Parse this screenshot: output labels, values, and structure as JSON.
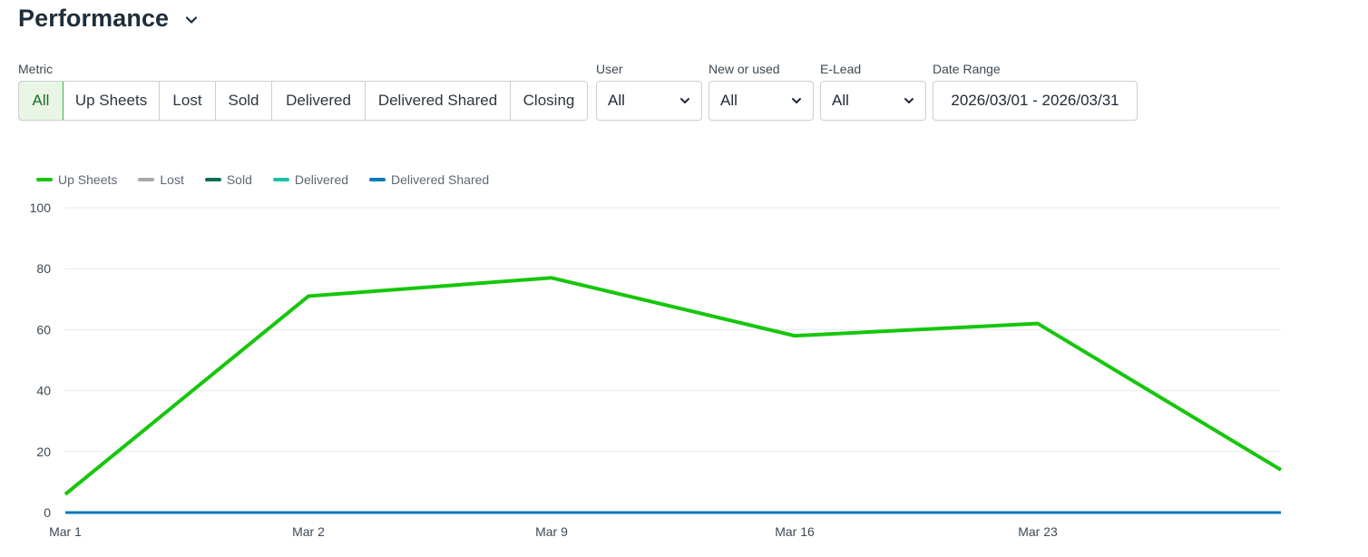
{
  "header": {
    "title": "Performance",
    "menu_icon": "chevron-down-icon"
  },
  "filters": {
    "metric_label": "Metric",
    "metric_options": [
      "All",
      "Up Sheets",
      "Lost",
      "Sold",
      "Delivered",
      "Delivered Shared",
      "Closing"
    ],
    "metric_selected": "All",
    "user_label": "User",
    "user_value": "All",
    "new_used_label": "New or used",
    "new_used_value": "All",
    "elead_label": "E-Lead",
    "elead_value": "All",
    "date_range_label": "Date Range",
    "date_range_value": "2026/03/01 - 2026/03/31"
  },
  "chart_data": {
    "type": "line",
    "categories": [
      "Mar 1",
      "Mar 2",
      "Mar 9",
      "Mar 16",
      "Mar 23",
      ""
    ],
    "ylim": [
      0,
      100
    ],
    "y_ticks": [
      0,
      20,
      40,
      60,
      80,
      100
    ],
    "grid": true,
    "legend_position": "top-left",
    "series": [
      {
        "name": "Up Sheets",
        "color": "#16c60c",
        "values": [
          6,
          71,
          77,
          58,
          62,
          14
        ]
      },
      {
        "name": "Lost",
        "color": "#a9a9a9",
        "values": [
          0,
          0,
          0,
          0,
          0,
          0
        ]
      },
      {
        "name": "Sold",
        "color": "#0b6e5a",
        "values": [
          0,
          0,
          0,
          0,
          0,
          0
        ]
      },
      {
        "name": "Delivered",
        "color": "#17c3a8",
        "values": [
          0,
          0,
          0,
          0,
          0,
          0
        ]
      },
      {
        "name": "Delivered Shared",
        "color": "#0b79b8",
        "values": [
          0,
          0,
          0,
          0,
          0,
          0
        ]
      }
    ]
  }
}
